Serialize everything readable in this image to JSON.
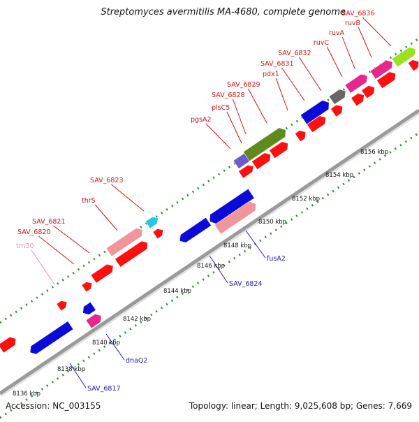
{
  "title": "Streptomyces avermitilis MA-4680, complete genome",
  "footer": {
    "accession": "Accession: NC_003155",
    "summary": "Topology: linear; Length: 9,025,608 bp; Genes: 7,669"
  },
  "colors": {
    "backbone": "#9a9a9a",
    "tick": "#2e8b2e",
    "label_red": "#d21414",
    "label_blue": "#1a1ac8",
    "label_pink": "#f08cb4"
  },
  "scale": {
    "tick_labels": [
      "8136 kbp",
      "8138 kbp",
      "8140 kbp",
      "8142 kbp",
      "8144 kbp",
      "8146 kbp",
      "8148 kbp",
      "8150 kbp",
      "8152 kbp",
      "8154 kbp",
      "8156 kbp"
    ]
  },
  "features_top": [
    {
      "label": "SAV_6836",
      "color": "#9be21e"
    },
    {
      "label": "ruvB",
      "color": "#e8268c"
    },
    {
      "label": "ruvA",
      "color": "#e8268c"
    },
    {
      "label": "ruvC",
      "color": "#666666"
    },
    {
      "label": "SAV_6832",
      "color": "#0b0bd8"
    },
    {
      "label": "SAV_6831",
      "color": "#ff1010"
    },
    {
      "label": "pdx1",
      "color": "#ff1010"
    },
    {
      "label": "SAV_6829",
      "color": "#ff1010"
    },
    {
      "label": "SAV_6828",
      "color": "#5f8a1e"
    },
    {
      "label": "plsC5",
      "color": "#ff1010"
    },
    {
      "label": "pgsA2",
      "color": "#6a5acd"
    },
    {
      "label": "SAV_6823",
      "color": "#22c8e6"
    },
    {
      "label": "thrS",
      "color": "#f0959a"
    },
    {
      "label": "SAV_6821",
      "color": "#ff1010"
    },
    {
      "label": "SAV_6820",
      "color": "#ff1010"
    },
    {
      "label": "trn30",
      "color": "#f08cb4"
    }
  ],
  "features_bottom": [
    {
      "label": "fusA2",
      "color": "#f0959a"
    },
    {
      "label": "SAV_6824",
      "color": "#0b0bd8"
    },
    {
      "label": "dnaQ2",
      "color": "#e8268c"
    },
    {
      "label": "SAV_6817",
      "color": "#0b0bd8"
    }
  ]
}
